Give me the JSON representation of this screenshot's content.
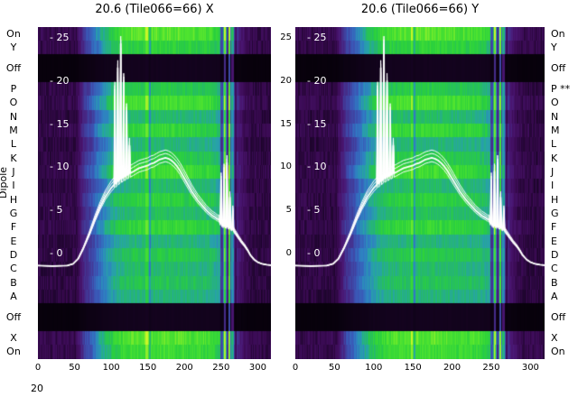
{
  "figure": {
    "stray_label": "20"
  },
  "chart_data": {
    "type": "heatmap",
    "panels": [
      {
        "title": "20.6 (Tile066=66) X"
      },
      {
        "title": "20.6 (Tile066=66) Y"
      }
    ],
    "ylabel": "Dipole",
    "x_ticks": [
      0,
      50,
      100,
      150,
      200,
      250,
      300
    ],
    "x_range": [
      0,
      318
    ],
    "value_axis": {
      "ticks": [
        25,
        20,
        15,
        10,
        5,
        0
      ],
      "inside_tick_prefix": "- "
    },
    "rows": [
      {
        "label": "On",
        "right": "On",
        "factor": 1.0,
        "h": 1
      },
      {
        "label": "Y",
        "right": "Y",
        "factor": 0.9,
        "h": 1
      },
      {
        "label": "Off",
        "right": "Off",
        "factor": 0.06,
        "h": 2
      },
      {
        "label": "P",
        "right": "P **",
        "factor": 0.86,
        "h": 1
      },
      {
        "label": "O",
        "right": "O",
        "factor": 0.97,
        "h": 1
      },
      {
        "label": "N",
        "right": "N",
        "factor": 0.8,
        "h": 1
      },
      {
        "label": "M",
        "right": "M",
        "factor": 0.92,
        "h": 1
      },
      {
        "label": "L",
        "right": "L",
        "factor": 0.78,
        "h": 1
      },
      {
        "label": "K",
        "right": "K",
        "factor": 0.87,
        "h": 1
      },
      {
        "label": "J",
        "right": "J",
        "factor": 0.95,
        "h": 1
      },
      {
        "label": "I",
        "right": "I",
        "factor": 0.8,
        "h": 1
      },
      {
        "label": "H",
        "right": "H",
        "factor": 0.89,
        "h": 1
      },
      {
        "label": "G",
        "right": "G",
        "factor": 0.82,
        "h": 1
      },
      {
        "label": "F",
        "right": "F",
        "factor": 0.92,
        "h": 1
      },
      {
        "label": "E",
        "right": "E",
        "factor": 0.78,
        "h": 1
      },
      {
        "label": "D",
        "right": "D",
        "factor": 0.86,
        "h": 1
      },
      {
        "label": "C",
        "right": "C",
        "factor": 0.8,
        "h": 1
      },
      {
        "label": "B",
        "right": "B",
        "factor": 0.84,
        "h": 1
      },
      {
        "label": "A",
        "right": "A",
        "factor": 0.78,
        "h": 1
      },
      {
        "label": "Off",
        "right": "Off",
        "factor": 0.06,
        "h": 2
      },
      {
        "label": "X",
        "right": "X",
        "factor": 1.0,
        "h": 1
      },
      {
        "label": "On",
        "right": "On",
        "factor": 0.95,
        "h": 1
      }
    ],
    "intensity_profile": [
      [
        0,
        0.16
      ],
      [
        52,
        0.16
      ],
      [
        58,
        0.3
      ],
      [
        64,
        0.42
      ],
      [
        72,
        0.5
      ],
      [
        82,
        0.62
      ],
      [
        92,
        0.72
      ],
      [
        102,
        0.8
      ],
      [
        115,
        0.86
      ],
      [
        130,
        0.89
      ],
      [
        170,
        0.9
      ],
      [
        210,
        0.88
      ],
      [
        235,
        0.86
      ],
      [
        248,
        0.8
      ],
      [
        255,
        0.68
      ],
      [
        262,
        0.55
      ],
      [
        268,
        0.42
      ],
      [
        274,
        0.3
      ],
      [
        282,
        0.2
      ],
      [
        292,
        0.16
      ],
      [
        318,
        0.15
      ]
    ],
    "stripes": [
      [
        148,
        0.22,
        1.5,
        0
      ],
      [
        152,
        -0.18,
        1.2,
        0
      ],
      [
        250,
        -0.3,
        1.5,
        0
      ],
      [
        254,
        0.3,
        1.2,
        1
      ],
      [
        258,
        -0.25,
        1.2,
        0
      ],
      [
        261,
        0.4,
        1.2,
        1
      ],
      [
        265,
        0.22,
        1.5,
        1
      ],
      [
        269,
        -0.2,
        1.5,
        0
      ]
    ],
    "colormap": [
      [
        0,
        "#050108"
      ],
      [
        0.08,
        "#1a0428"
      ],
      [
        0.16,
        "#3a0a52"
      ],
      [
        0.26,
        "#4a1672"
      ],
      [
        0.36,
        "#44318f"
      ],
      [
        0.46,
        "#3b55b5"
      ],
      [
        0.56,
        "#2f7ec4"
      ],
      [
        0.64,
        "#27a3a8"
      ],
      [
        0.72,
        "#25bb66"
      ],
      [
        0.8,
        "#2bd13c"
      ],
      [
        0.9,
        "#52e52e"
      ],
      [
        1,
        "#c8f727"
      ]
    ],
    "noise": 0.05,
    "line_series": {
      "color": "#ffffff",
      "traces": [
        0,
        -0.45,
        0.5,
        0.9
      ],
      "points": [
        [
          0,
          -1.4
        ],
        [
          20,
          -1.45
        ],
        [
          40,
          -1.4
        ],
        [
          48,
          -1.2
        ],
        [
          55,
          -0.6
        ],
        [
          62,
          0.6
        ],
        [
          70,
          2.2
        ],
        [
          78,
          4.0
        ],
        [
          85,
          5.4
        ],
        [
          92,
          6.6
        ],
        [
          100,
          7.6
        ],
        [
          104,
          8.0
        ],
        [
          105,
          19.0
        ],
        [
          106,
          8.1
        ],
        [
          108,
          8.3
        ],
        [
          109,
          21.5
        ],
        [
          110,
          8.4
        ],
        [
          112,
          8.6
        ],
        [
          113,
          24.3
        ],
        [
          114,
          8.7
        ],
        [
          116,
          8.8
        ],
        [
          117,
          20.0
        ],
        [
          118,
          8.9
        ],
        [
          120,
          9.0
        ],
        [
          121,
          16.5
        ],
        [
          122,
          9.1
        ],
        [
          124,
          9.2
        ],
        [
          125,
          12.5
        ],
        [
          126,
          9.3
        ],
        [
          130,
          9.5
        ],
        [
          134,
          9.7
        ],
        [
          138,
          9.9
        ],
        [
          142,
          10.0
        ],
        [
          146,
          10.1
        ],
        [
          150,
          10.2
        ],
        [
          154,
          10.4
        ],
        [
          158,
          10.5
        ],
        [
          162,
          10.7
        ],
        [
          166,
          10.9
        ],
        [
          170,
          11.0
        ],
        [
          174,
          11.1
        ],
        [
          178,
          11.0
        ],
        [
          182,
          10.8
        ],
        [
          186,
          10.5
        ],
        [
          190,
          10.1
        ],
        [
          194,
          9.6
        ],
        [
          198,
          9.0
        ],
        [
          202,
          8.4
        ],
        [
          206,
          7.8
        ],
        [
          210,
          7.2
        ],
        [
          214,
          6.7
        ],
        [
          218,
          6.2
        ],
        [
          222,
          5.8
        ],
        [
          226,
          5.4
        ],
        [
          230,
          5.0
        ],
        [
          234,
          4.7
        ],
        [
          238,
          4.4
        ],
        [
          242,
          4.2
        ],
        [
          245,
          4.0
        ],
        [
          247,
          4.0
        ],
        [
          249,
          3.5
        ],
        [
          250,
          8.5
        ],
        [
          251,
          3.3
        ],
        [
          253,
          3.2
        ],
        [
          254,
          9.5
        ],
        [
          255,
          3.2
        ],
        [
          257,
          3.1
        ],
        [
          258,
          10.5
        ],
        [
          259,
          3.1
        ],
        [
          261,
          3.0
        ],
        [
          262,
          6.5
        ],
        [
          263,
          2.9
        ],
        [
          265,
          2.8
        ],
        [
          266,
          5.0
        ],
        [
          267,
          2.7
        ],
        [
          270,
          2.3
        ],
        [
          274,
          1.8
        ],
        [
          278,
          1.3
        ],
        [
          282,
          0.9
        ],
        [
          286,
          0.4
        ],
        [
          290,
          -0.2
        ],
        [
          295,
          -0.7
        ],
        [
          300,
          -1.0
        ],
        [
          306,
          -1.2
        ],
        [
          312,
          -1.3
        ],
        [
          318,
          -1.35
        ]
      ]
    }
  }
}
